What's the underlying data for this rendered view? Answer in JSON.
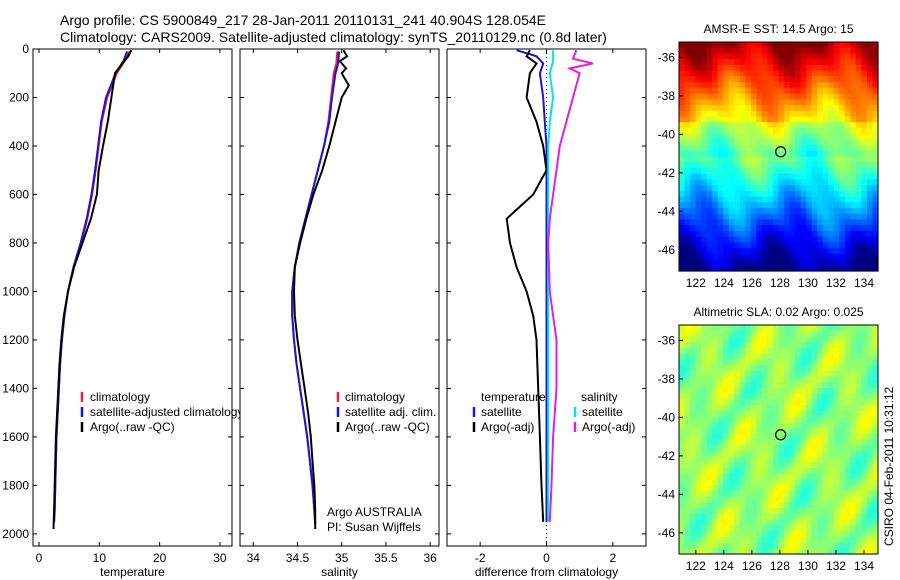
{
  "header": {
    "line1": "Argo profile: CS 5900849_217 28-Jan-2011 20110131_241 40.904S 128.054E",
    "line2": "Climatology: CARS2009. Satellite-adjusted climatology: synTS_20110129.nc (0.8d later)"
  },
  "footer_vertical": "CSIRO 04-Feb-2011 10:31:12",
  "colors": {
    "climatology": "#e8212b",
    "satellite": "#1515e0",
    "argo": "#000000",
    "sat_salinity": "#00e5ee",
    "argo_adj_salinity": "#e020e0"
  },
  "chart_data": [
    {
      "type": "line",
      "xlabel": "temperature",
      "xlim": [
        -1,
        32
      ],
      "ylim": [
        2050,
        0
      ],
      "xticks": [
        0,
        10,
        20,
        30
      ],
      "yticks": [
        0,
        200,
        400,
        600,
        800,
        1000,
        1200,
        1400,
        1600,
        1800,
        2000
      ],
      "legend": [
        "climatology",
        "satellite-adjusted climatology",
        "Argo(..raw -QC)"
      ],
      "series": [
        {
          "name": "climatology",
          "color_key": "climatology",
          "points": [
            [
              15.0,
              10
            ],
            [
              14.2,
              50
            ],
            [
              12.9,
              100
            ],
            [
              11.3,
              200
            ],
            [
              10.4,
              300
            ],
            [
              9.9,
              400
            ],
            [
              9.4,
              500
            ],
            [
              8.8,
              600
            ],
            [
              8.0,
              700
            ],
            [
              7.0,
              800
            ],
            [
              5.8,
              900
            ],
            [
              4.8,
              1000
            ],
            [
              4.2,
              1100
            ],
            [
              3.8,
              1200
            ],
            [
              3.5,
              1300
            ],
            [
              3.3,
              1400
            ],
            [
              3.1,
              1500
            ],
            [
              2.9,
              1600
            ],
            [
              2.8,
              1700
            ],
            [
              2.7,
              1800
            ],
            [
              2.6,
              1900
            ],
            [
              2.5,
              1950
            ]
          ]
        },
        {
          "name": "satellite-adjusted climatology",
          "color_key": "satellite",
          "points": [
            [
              14.6,
              10
            ],
            [
              14.0,
              50
            ],
            [
              12.7,
              100
            ],
            [
              11.1,
              200
            ],
            [
              10.3,
              300
            ],
            [
              9.8,
              400
            ],
            [
              9.3,
              500
            ],
            [
              8.7,
              600
            ],
            [
              7.9,
              700
            ],
            [
              6.9,
              800
            ],
            [
              5.7,
              900
            ],
            [
              4.8,
              1000
            ],
            [
              4.2,
              1100
            ],
            [
              3.8,
              1200
            ],
            [
              3.5,
              1300
            ],
            [
              3.3,
              1400
            ],
            [
              3.1,
              1500
            ],
            [
              2.9,
              1600
            ],
            [
              2.8,
              1700
            ],
            [
              2.7,
              1800
            ],
            [
              2.6,
              1900
            ],
            [
              2.5,
              1950
            ]
          ]
        },
        {
          "name": "Argo(..raw -QC)",
          "color_key": "argo",
          "points": [
            [
              15.3,
              5
            ],
            [
              14.8,
              30
            ],
            [
              13.8,
              60
            ],
            [
              12.6,
              100
            ],
            [
              12.0,
              200
            ],
            [
              11.4,
              300
            ],
            [
              10.6,
              400
            ],
            [
              9.9,
              500
            ],
            [
              9.6,
              600
            ],
            [
              8.6,
              700
            ],
            [
              7.2,
              800
            ],
            [
              5.8,
              900
            ],
            [
              4.8,
              1000
            ],
            [
              4.1,
              1100
            ],
            [
              3.7,
              1200
            ],
            [
              3.4,
              1300
            ],
            [
              3.2,
              1400
            ],
            [
              3.0,
              1500
            ],
            [
              2.8,
              1600
            ],
            [
              2.7,
              1700
            ],
            [
              2.6,
              1800
            ],
            [
              2.5,
              1900
            ],
            [
              2.4,
              1980
            ]
          ]
        }
      ]
    },
    {
      "type": "line",
      "xlabel": "salinity",
      "xlim": [
        33.85,
        36.1
      ],
      "ylim": [
        2050,
        0
      ],
      "xticks": [
        34,
        34.5,
        35,
        35.5,
        36
      ],
      "yticks": [
        0,
        200,
        400,
        600,
        800,
        1000,
        1200,
        1400,
        1600,
        1800,
        2000
      ],
      "legend": [
        "climatology",
        "satellite adj. clim.",
        "Argo(..raw -QC)"
      ],
      "annotation": [
        "Argo AUSTRALIA",
        "PI: Susan Wijffels"
      ],
      "series": [
        {
          "name": "climatology",
          "color_key": "climatology",
          "points": [
            [
              34.95,
              10
            ],
            [
              34.94,
              60
            ],
            [
              34.91,
              100
            ],
            [
              34.88,
              200
            ],
            [
              34.85,
              300
            ],
            [
              34.8,
              400
            ],
            [
              34.73,
              500
            ],
            [
              34.66,
              600
            ],
            [
              34.59,
              700
            ],
            [
              34.52,
              800
            ],
            [
              34.47,
              900
            ],
            [
              34.44,
              1000
            ],
            [
              34.44,
              1100
            ],
            [
              34.46,
              1200
            ],
            [
              34.49,
              1300
            ],
            [
              34.53,
              1400
            ],
            [
              34.57,
              1500
            ],
            [
              34.61,
              1600
            ],
            [
              34.64,
              1700
            ],
            [
              34.67,
              1800
            ],
            [
              34.69,
              1900
            ],
            [
              34.7,
              1960
            ]
          ]
        },
        {
          "name": "satellite adj. clim.",
          "color_key": "satellite",
          "points": [
            [
              34.97,
              10
            ],
            [
              34.96,
              60
            ],
            [
              34.93,
              100
            ],
            [
              34.89,
              200
            ],
            [
              34.86,
              300
            ],
            [
              34.8,
              400
            ],
            [
              34.73,
              500
            ],
            [
              34.66,
              600
            ],
            [
              34.59,
              700
            ],
            [
              34.52,
              800
            ],
            [
              34.47,
              900
            ],
            [
              34.44,
              1000
            ],
            [
              34.44,
              1100
            ],
            [
              34.46,
              1200
            ],
            [
              34.49,
              1300
            ],
            [
              34.53,
              1400
            ],
            [
              34.57,
              1500
            ],
            [
              34.61,
              1600
            ],
            [
              34.64,
              1700
            ],
            [
              34.67,
              1800
            ],
            [
              34.69,
              1900
            ],
            [
              34.7,
              1960
            ]
          ]
        },
        {
          "name": "Argo(..raw -QC)",
          "color_key": "argo",
          "points": [
            [
              35.02,
              5
            ],
            [
              35.06,
              30
            ],
            [
              34.98,
              50
            ],
            [
              35.05,
              80
            ],
            [
              35.0,
              100
            ],
            [
              35.08,
              150
            ],
            [
              35.0,
              200
            ],
            [
              34.93,
              300
            ],
            [
              34.86,
              400
            ],
            [
              34.78,
              500
            ],
            [
              34.68,
              600
            ],
            [
              34.6,
              700
            ],
            [
              34.53,
              800
            ],
            [
              34.47,
              900
            ],
            [
              34.46,
              1000
            ],
            [
              34.47,
              1100
            ],
            [
              34.5,
              1200
            ],
            [
              34.54,
              1300
            ],
            [
              34.58,
              1400
            ],
            [
              34.62,
              1500
            ],
            [
              34.65,
              1600
            ],
            [
              34.67,
              1700
            ],
            [
              34.69,
              1800
            ],
            [
              34.7,
              1900
            ],
            [
              34.7,
              1980
            ]
          ]
        }
      ]
    },
    {
      "type": "line",
      "xlabel": "difference from climatology",
      "xlim": [
        -3,
        3
      ],
      "ylim": [
        2050,
        0
      ],
      "xticks": [
        -2,
        0,
        2
      ],
      "yticks": [
        0,
        200,
        400,
        600,
        800,
        1000,
        1200,
        1400,
        1600,
        1800,
        2000
      ],
      "legend_left": [
        "temperature",
        "satellite",
        "Argo(-adj)"
      ],
      "legend_right": [
        "salinity",
        "satellite",
        "Argo(-adj)"
      ],
      "series": [
        {
          "name": "temperature satellite",
          "color_key": "satellite",
          "points": [
            [
              -0.9,
              5
            ],
            [
              -0.3,
              30
            ],
            [
              -0.1,
              60
            ],
            [
              -0.2,
              100
            ],
            [
              -0.1,
              200
            ],
            [
              -0.05,
              300
            ],
            [
              0.0,
              400
            ],
            [
              0.0,
              600
            ],
            [
              0.0,
              1000
            ],
            [
              0.0,
              1400
            ],
            [
              0.0,
              1950
            ]
          ]
        },
        {
          "name": "temperature Argo(-adj)",
          "color_key": "argo",
          "points": [
            [
              -0.5,
              5
            ],
            [
              -0.6,
              30
            ],
            [
              -0.3,
              60
            ],
            [
              -0.5,
              100
            ],
            [
              -0.6,
              200
            ],
            [
              -0.3,
              300
            ],
            [
              -0.1,
              400
            ],
            [
              0.0,
              500
            ],
            [
              -0.4,
              600
            ],
            [
              -1.2,
              700
            ],
            [
              -1.1,
              800
            ],
            [
              -0.9,
              900
            ],
            [
              -0.6,
              1000
            ],
            [
              -0.4,
              1100
            ],
            [
              -0.3,
              1200
            ],
            [
              -0.25,
              1400
            ],
            [
              -0.2,
              1600
            ],
            [
              -0.15,
              1800
            ],
            [
              -0.1,
              1950
            ]
          ]
        },
        {
          "name": "salinity satellite",
          "color_key": "sat_salinity",
          "points": [
            [
              0.2,
              5
            ],
            [
              0.2,
              50
            ],
            [
              0.1,
              100
            ],
            [
              0.2,
              200
            ],
            [
              0.1,
              300
            ],
            [
              0.05,
              400
            ],
            [
              0.05,
              600
            ],
            [
              0.05,
              1000
            ],
            [
              0.05,
              1400
            ],
            [
              0.05,
              1950
            ]
          ]
        },
        {
          "name": "salinity Argo(-adj)",
          "color_key": "argo_adj_salinity",
          "points": [
            [
              0.9,
              5
            ],
            [
              0.8,
              40
            ],
            [
              1.4,
              60
            ],
            [
              0.7,
              80
            ],
            [
              1.0,
              100
            ],
            [
              0.8,
              200
            ],
            [
              0.6,
              300
            ],
            [
              0.4,
              400
            ],
            [
              0.3,
              500
            ],
            [
              0.2,
              600
            ],
            [
              0.1,
              700
            ],
            [
              0.05,
              800
            ],
            [
              0.1,
              1000
            ],
            [
              0.2,
              1100
            ],
            [
              0.3,
              1200
            ],
            [
              0.3,
              1400
            ],
            [
              0.2,
              1600
            ],
            [
              0.15,
              1800
            ],
            [
              0.1,
              1950
            ]
          ]
        }
      ]
    },
    {
      "type": "heatmap",
      "title": "AMSR-E SST: 14.5 Argo: 15",
      "xticks": [
        122,
        124,
        126,
        128,
        130,
        132,
        134
      ],
      "yticks": [
        -36,
        -38,
        -40,
        -42,
        -44,
        -46
      ],
      "xlim": [
        120.8,
        135
      ],
      "ylim": [
        -47.1,
        -35.2
      ],
      "marker": [
        128.054,
        -40.904
      ],
      "colormap": "jet"
    },
    {
      "type": "heatmap",
      "title": "Altimetric SLA: 0.02 Argo: 0.025",
      "xticks": [
        122,
        124,
        126,
        128,
        130,
        132,
        134
      ],
      "yticks": [
        -36,
        -38,
        -40,
        -42,
        -44,
        -46
      ],
      "xlim": [
        120.8,
        135
      ],
      "ylim": [
        -47.1,
        -35.2
      ],
      "marker": [
        128.054,
        -40.904
      ],
      "colormap": "jet"
    }
  ]
}
